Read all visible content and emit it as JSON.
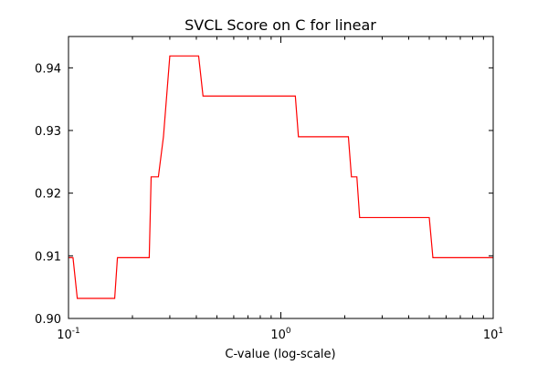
{
  "chart_data": {
    "type": "line",
    "title": "SVCL Score on C for linear",
    "xlabel": "C-value (log-scale)",
    "ylabel": "",
    "x_scale": "log",
    "xlim": [
      0.1,
      10
    ],
    "ylim": [
      0.9,
      0.945
    ],
    "grid": false,
    "legend": "none",
    "x_ticks": [
      {
        "value": 0.1,
        "base": "10",
        "exp": "-1"
      },
      {
        "value": 1,
        "base": "10",
        "exp": "0"
      },
      {
        "value": 10,
        "base": "10",
        "exp": "1"
      }
    ],
    "y_ticks": [
      {
        "value": 0.9,
        "label": "0.90"
      },
      {
        "value": 0.91,
        "label": "0.91"
      },
      {
        "value": 0.92,
        "label": "0.92"
      },
      {
        "value": 0.93,
        "label": "0.93"
      },
      {
        "value": 0.94,
        "label": "0.94"
      }
    ],
    "series": [
      {
        "color": "#ff0000",
        "x": [
          0.1,
          0.105,
          0.11,
          0.165,
          0.17,
          0.24,
          0.245,
          0.265,
          0.28,
          0.3,
          0.41,
          0.43,
          1.17,
          1.21,
          2.08,
          2.15,
          2.28,
          2.35,
          5.0,
          5.2,
          10
        ],
        "y": [
          0.9097,
          0.9097,
          0.9032,
          0.9032,
          0.9097,
          0.9097,
          0.9226,
          0.9226,
          0.929,
          0.9419,
          0.9419,
          0.9355,
          0.9355,
          0.929,
          0.929,
          0.9226,
          0.9226,
          0.9161,
          0.9161,
          0.9097,
          0.9097
        ]
      }
    ]
  }
}
